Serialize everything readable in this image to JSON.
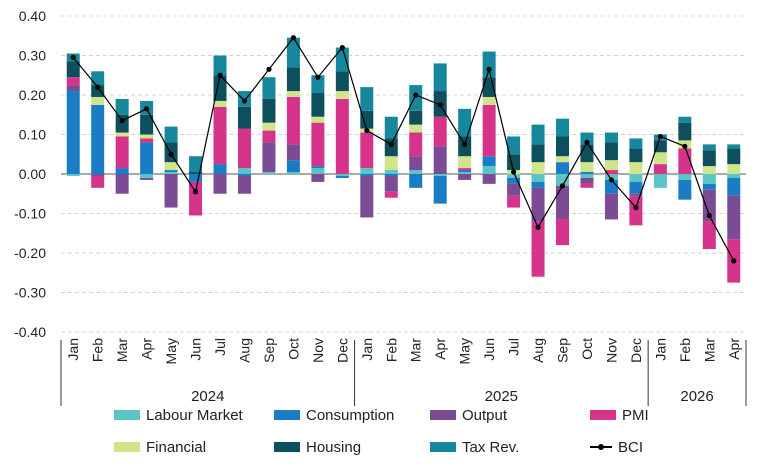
{
  "chart_data": {
    "type": "bar",
    "stacked": true,
    "ylim": [
      -0.4,
      0.4
    ],
    "yticks": [
      "0.40",
      "0.30",
      "0.20",
      "0.10",
      "0.00",
      "-0.10",
      "-0.20",
      "-0.30",
      "-0.40"
    ],
    "grid": true,
    "categories": [
      "Jan",
      "Feb",
      "Mar",
      "Apr",
      "May",
      "Jun",
      "Jul",
      "Aug",
      "Sep",
      "Oct",
      "Nov",
      "Dec",
      "Jan",
      "Feb",
      "Mar",
      "Apr",
      "May",
      "Jun",
      "Jul",
      "Aug",
      "Sep",
      "Oct",
      "Nov",
      "Dec",
      "Jan",
      "Feb",
      "Mar",
      "Apr"
    ],
    "groups": [
      {
        "label": "2024",
        "count": 12
      },
      {
        "label": "2025",
        "count": 12
      },
      {
        "label": "2026",
        "count": 4
      }
    ],
    "legend_position": "bottom",
    "series": [
      {
        "name": "Labour Market",
        "color": "#5bc4c4",
        "values": [
          -0.005,
          0,
          0,
          -0.01,
          0.005,
          0,
          0,
          0.015,
          0.005,
          0.005,
          0.015,
          -0.005,
          0.015,
          0.01,
          0.01,
          -0.005,
          0.005,
          0.02,
          -0.01,
          -0.02,
          -0.03,
          -0.01,
          -0.015,
          -0.02,
          -0.035,
          -0.015,
          -0.025,
          -0.01
        ]
      },
      {
        "name": "Consumption",
        "color": "#1a7cc4",
        "values": [
          0.21,
          0.175,
          0.015,
          0.08,
          0.005,
          -0.02,
          0.025,
          -0.005,
          0,
          0.03,
          0.005,
          -0.005,
          -0.005,
          -0.005,
          -0.035,
          -0.07,
          0.005,
          0.025,
          -0.015,
          -0.015,
          0.03,
          0.005,
          -0.035,
          -0.03,
          0,
          -0.05,
          -0.015,
          -0.045
        ]
      },
      {
        "name": "Output",
        "color": "#7b4b94",
        "values": [
          0.015,
          -0.005,
          -0.05,
          -0.005,
          -0.085,
          0,
          -0.05,
          -0.045,
          0.075,
          0.04,
          -0.02,
          0,
          -0.105,
          -0.04,
          0.035,
          0.07,
          -0.015,
          -0.025,
          -0.03,
          -0.085,
          -0.085,
          -0.015,
          -0.065,
          -0.005,
          0,
          0,
          -0.08,
          -0.11
        ]
      },
      {
        "name": "PMI",
        "color": "#d6338a",
        "values": [
          0.02,
          -0.03,
          0.08,
          0.01,
          0,
          -0.085,
          0.145,
          0.1,
          0.03,
          0.12,
          0.11,
          0.19,
          0.09,
          -0.015,
          0.06,
          0.075,
          0.005,
          0.13,
          -0.03,
          -0.14,
          -0.065,
          -0.01,
          0.01,
          -0.075,
          0.025,
          0.065,
          -0.07,
          -0.11
        ]
      },
      {
        "name": "Financial",
        "color": "#d2e48a",
        "values": [
          0,
          0.02,
          0.01,
          0.01,
          0.02,
          0,
          0.015,
          0,
          0.02,
          0.015,
          0.015,
          0.02,
          0.01,
          0.035,
          0.02,
          0,
          0.03,
          0.02,
          0.01,
          0.03,
          0.015,
          0.025,
          0.025,
          0.03,
          0.03,
          0.02,
          0.02,
          0.025
        ]
      },
      {
        "name": "Housing",
        "color": "#0d4f5c",
        "values": [
          0.04,
          0.03,
          0.045,
          0.05,
          0.05,
          0.005,
          0.065,
          0.055,
          0.06,
          0.06,
          0.06,
          0.05,
          0.045,
          0.045,
          0.035,
          0.065,
          0.05,
          0.05,
          0.04,
          0.045,
          0.05,
          0.045,
          0.045,
          0.035,
          0.03,
          0.045,
          0.04,
          0.04
        ]
      },
      {
        "name": "Tax Rev.",
        "color": "#16879d",
        "values": [
          0.02,
          0.035,
          0.04,
          0.035,
          0.04,
          0.04,
          0.05,
          0.04,
          0.055,
          0.075,
          0.045,
          0.06,
          0.06,
          0.055,
          0.065,
          0.07,
          0.07,
          0.065,
          0.045,
          0.05,
          0.045,
          0.03,
          0.025,
          0.025,
          0.015,
          0.015,
          0.015,
          0.01
        ]
      }
    ],
    "line": {
      "name": "BCI",
      "color": "#000000",
      "values": [
        0.295,
        0.22,
        0.135,
        0.165,
        0.05,
        -0.045,
        0.25,
        0.185,
        0.265,
        0.345,
        0.245,
        0.32,
        0.11,
        0.075,
        0.2,
        0.175,
        0.075,
        0.265,
        0.005,
        -0.135,
        -0.03,
        0.08,
        -0.015,
        -0.085,
        0.095,
        0.07,
        -0.105,
        -0.22
      ]
    }
  }
}
